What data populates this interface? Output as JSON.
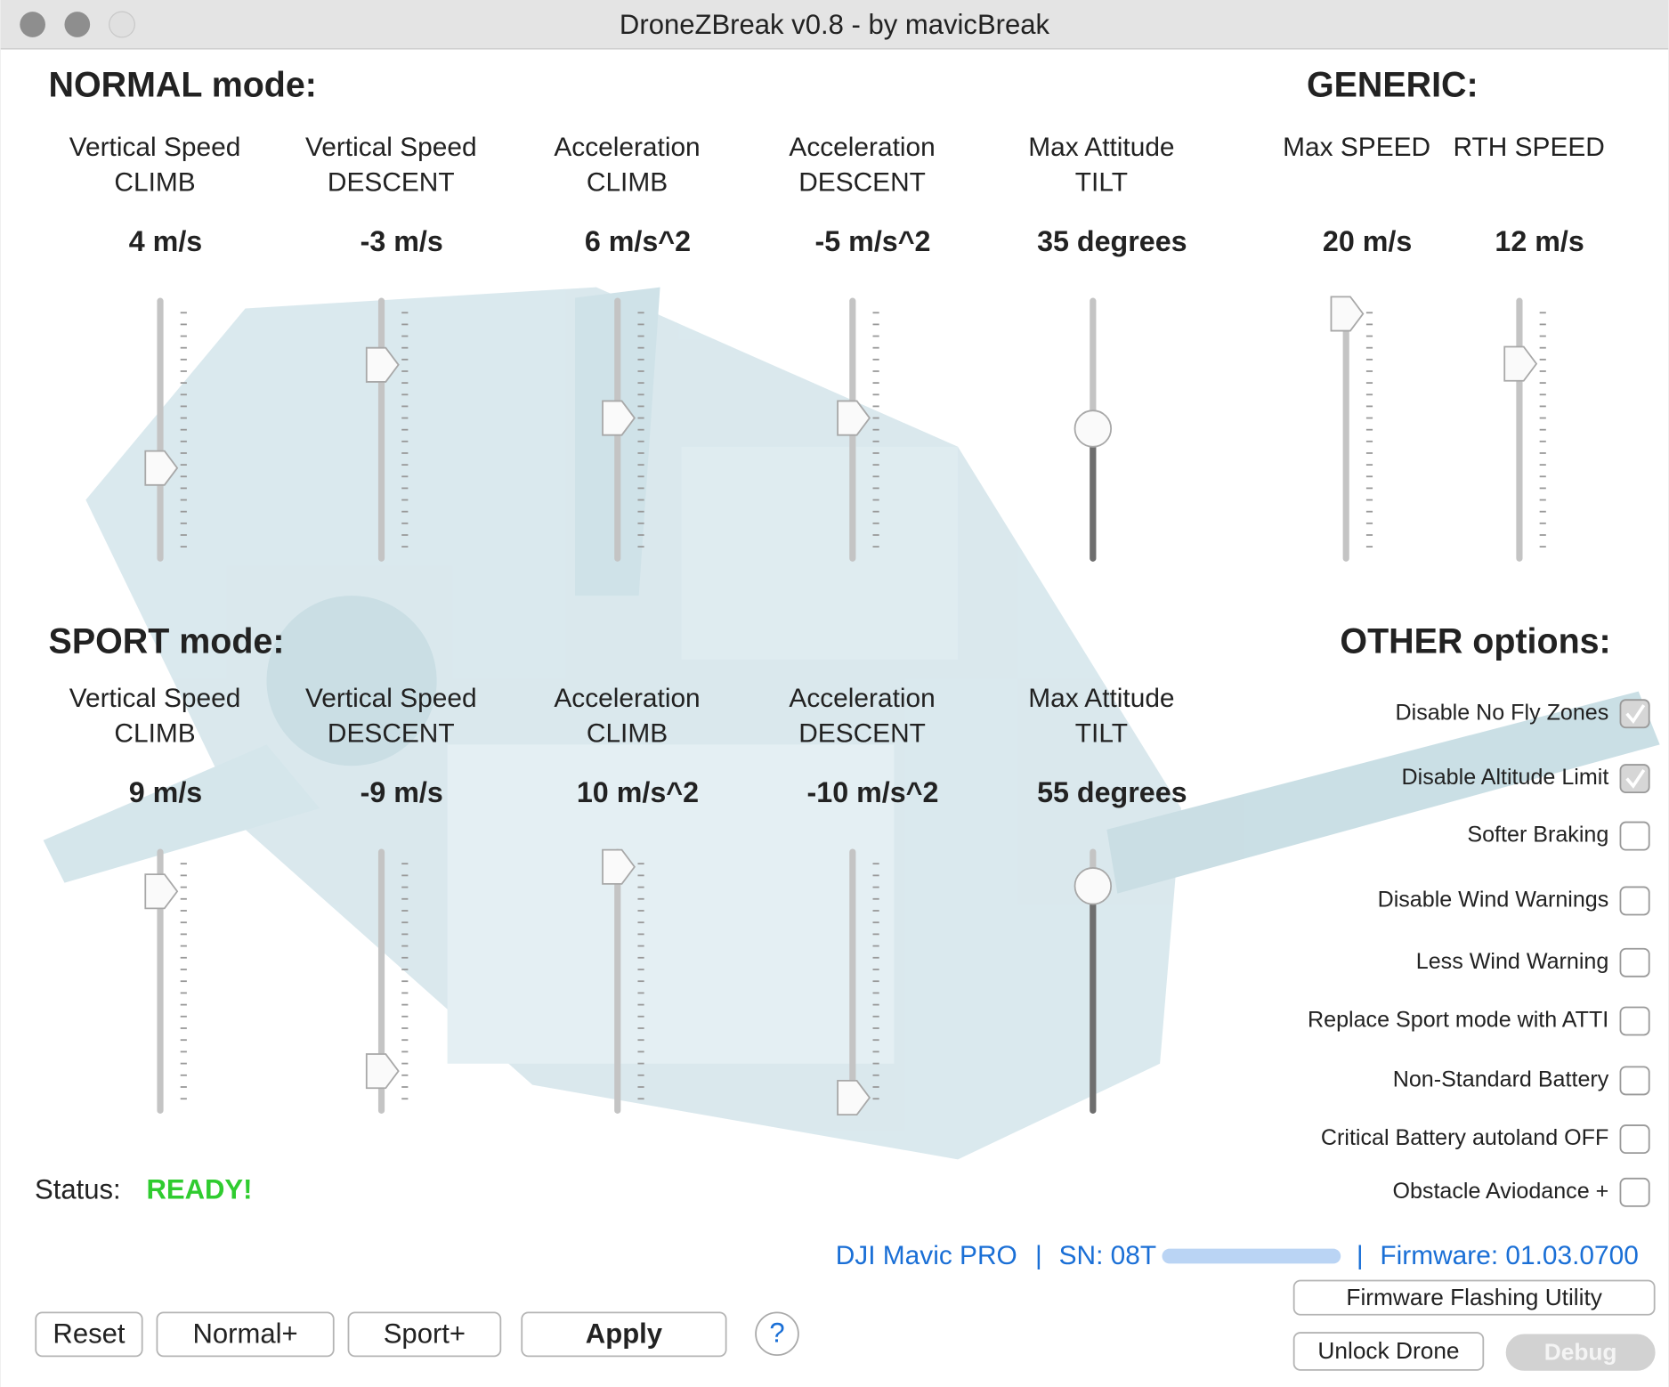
{
  "window": {
    "title": "DroneZBreak v0.8 - by mavicBreak"
  },
  "normal": {
    "heading": "NORMAL mode:",
    "sliders": [
      {
        "label": [
          "Vertical Speed",
          "CLIMB"
        ],
        "value": "4 m/s"
      },
      {
        "label": [
          "Vertical Speed",
          "DESCENT"
        ],
        "value": "-3 m/s"
      },
      {
        "label": [
          "Acceleration",
          "CLIMB"
        ],
        "value": "6 m/s^2"
      },
      {
        "label": [
          "Acceleration",
          "DESCENT"
        ],
        "value": "-5 m/s^2"
      },
      {
        "label": [
          "Max Attitude",
          "TILT"
        ],
        "value": "35 degrees"
      }
    ]
  },
  "generic": {
    "heading": "GENERIC:",
    "sliders": [
      {
        "label": [
          "Max SPEED"
        ],
        "value": "20 m/s"
      },
      {
        "label": [
          "RTH SPEED"
        ],
        "value": "12 m/s"
      }
    ]
  },
  "sport": {
    "heading": "SPORT mode:",
    "sliders": [
      {
        "label": [
          "Vertical Speed",
          "CLIMB"
        ],
        "value": "9 m/s"
      },
      {
        "label": [
          "Vertical Speed",
          "DESCENT"
        ],
        "value": "-9 m/s"
      },
      {
        "label": [
          "Acceleration",
          "CLIMB"
        ],
        "value": "10 m/s^2"
      },
      {
        "label": [
          "Acceleration",
          "DESCENT"
        ],
        "value": "-10 m/s^2"
      },
      {
        "label": [
          "Max Attitude",
          "TILT"
        ],
        "value": "55 degrees"
      }
    ]
  },
  "other": {
    "heading": "OTHER options:",
    "options": [
      {
        "label": "Disable No Fly Zones",
        "checked": true
      },
      {
        "label": "Disable Altitude Limit",
        "checked": true
      },
      {
        "label": "Softer Braking",
        "checked": false
      },
      {
        "label": "Disable Wind Warnings",
        "checked": false
      },
      {
        "label": "Less Wind Warning",
        "checked": false
      },
      {
        "label": "Replace Sport mode with ATTI",
        "checked": false
      },
      {
        "label": "Non-Standard Battery",
        "checked": false
      },
      {
        "label": "Critical Battery autoland OFF",
        "checked": false
      },
      {
        "label": "Obstacle Aviodance +",
        "checked": false
      }
    ]
  },
  "status": {
    "label": "Status:",
    "value": "READY!"
  },
  "device": {
    "model": "DJI Mavic PRO",
    "separator": "|",
    "serial": "SN: 08T",
    "firmware": "Firmware: 01.03.0700"
  },
  "buttons": [
    "Reset",
    "Normal+",
    "Sport+",
    "Apply",
    "?",
    "Firmware Flashing Utility",
    "Unlock Drone",
    "Debug"
  ]
}
